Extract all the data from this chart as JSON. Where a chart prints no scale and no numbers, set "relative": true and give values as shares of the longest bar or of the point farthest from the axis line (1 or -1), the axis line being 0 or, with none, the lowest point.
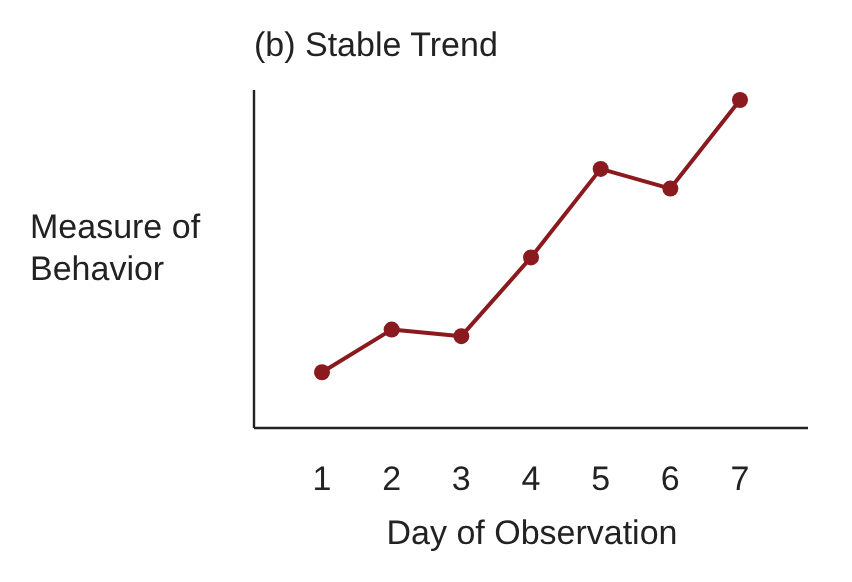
{
  "chart_data": {
    "type": "line",
    "title": "(b) Stable Trend",
    "xlabel": "Day of Observation",
    "ylabel": "Measure of Behavior",
    "relative": true,
    "categories": [
      "1",
      "2",
      "3",
      "4",
      "5",
      "6",
      "7"
    ],
    "series": [
      {
        "color": "#8b1a1f",
        "values": [
          0.17,
          0.3,
          0.28,
          0.52,
          0.79,
          0.73,
          1
        ]
      }
    ],
    "marker": "circle",
    "line_style": "solid"
  }
}
